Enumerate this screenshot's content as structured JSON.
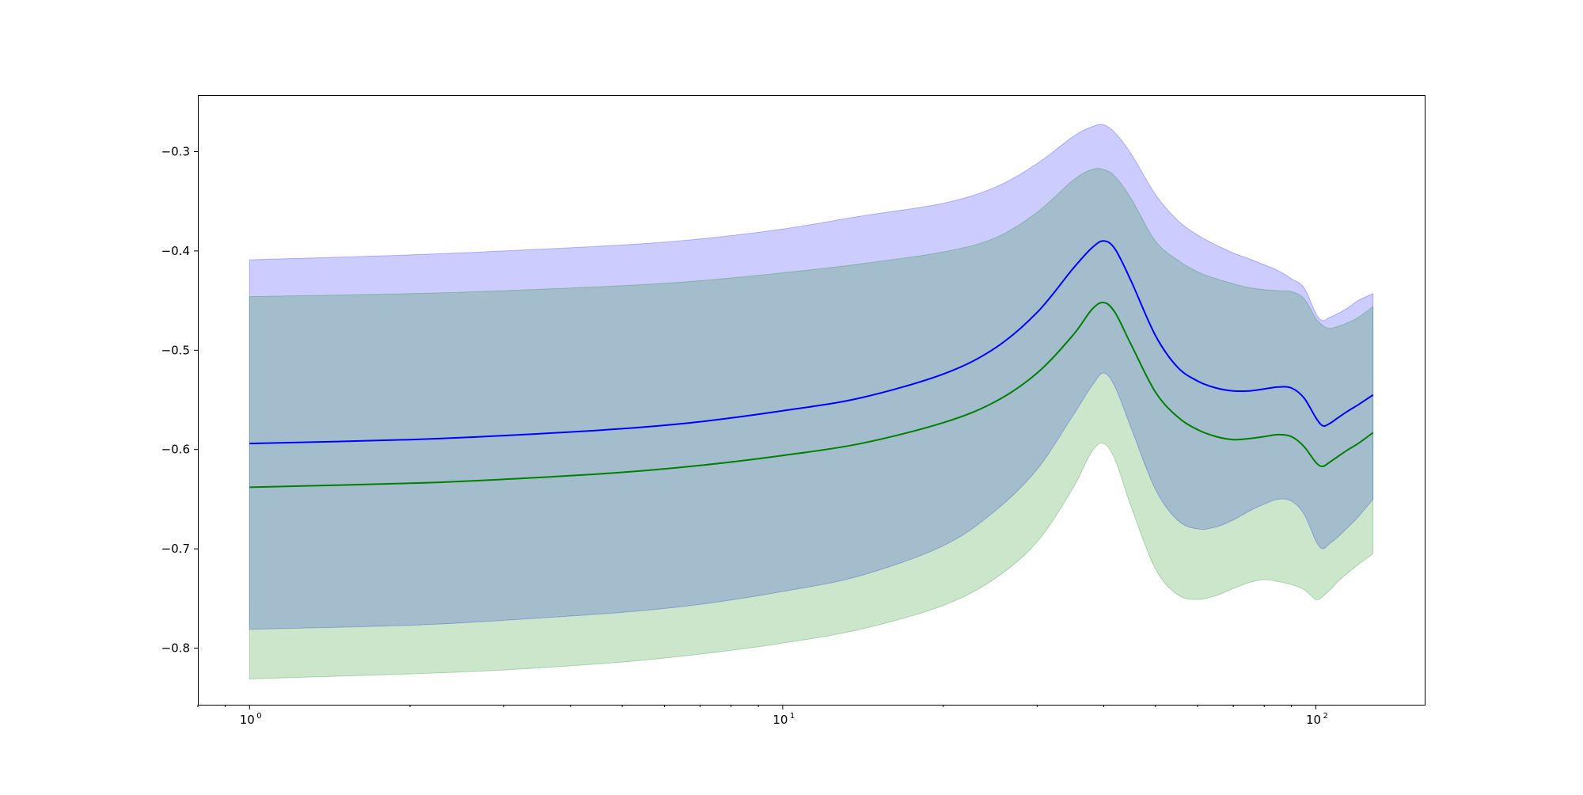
{
  "chart_data": {
    "type": "area",
    "title": "",
    "xlabel": "",
    "ylabel": "",
    "xscale": "log",
    "xlim": [
      0.8,
      160
    ],
    "ylim": [
      -0.857,
      -0.243
    ],
    "grid": false,
    "x": [
      1,
      2,
      3,
      5,
      7,
      10,
      14,
      20,
      25,
      30,
      35,
      38,
      40,
      42,
      45,
      50,
      55,
      60,
      65,
      70,
      75,
      80,
      85,
      90,
      95,
      100,
      103,
      106,
      110,
      115,
      120,
      128
    ],
    "yticks": [
      {
        "value": -0.3,
        "label": "−0.3"
      },
      {
        "value": -0.4,
        "label": "−0.4"
      },
      {
        "value": -0.5,
        "label": "−0.5"
      },
      {
        "value": -0.6,
        "label": "−0.6"
      },
      {
        "value": -0.7,
        "label": "−0.7"
      },
      {
        "value": -0.8,
        "label": "−0.8"
      }
    ],
    "xticks": [
      {
        "value": 1,
        "base": "10",
        "exp": "0"
      },
      {
        "value": 10,
        "base": "10",
        "exp": "1"
      },
      {
        "value": 100,
        "base": "10",
        "exp": "2"
      }
    ],
    "series": [
      {
        "color": "#0000ff",
        "band_color": "#0000ff",
        "band_opacity": 0.2,
        "values": [
          -0.594,
          -0.59,
          -0.586,
          -0.579,
          -0.572,
          -0.561,
          -0.548,
          -0.524,
          -0.498,
          -0.462,
          -0.418,
          -0.397,
          -0.39,
          -0.398,
          -0.43,
          -0.485,
          -0.517,
          -0.531,
          -0.538,
          -0.541,
          -0.541,
          -0.539,
          -0.537,
          -0.538,
          -0.548,
          -0.568,
          -0.576,
          -0.574,
          -0.568,
          -0.561,
          -0.555,
          -0.545
        ],
        "lower": [
          -0.781,
          -0.777,
          -0.772,
          -0.764,
          -0.756,
          -0.743,
          -0.727,
          -0.697,
          -0.662,
          -0.62,
          -0.566,
          -0.536,
          -0.523,
          -0.537,
          -0.578,
          -0.64,
          -0.671,
          -0.68,
          -0.678,
          -0.671,
          -0.662,
          -0.655,
          -0.65,
          -0.652,
          -0.665,
          -0.692,
          -0.7,
          -0.695,
          -0.688,
          -0.678,
          -0.668,
          -0.65
        ],
        "upper": [
          -0.409,
          -0.404,
          -0.4,
          -0.394,
          -0.388,
          -0.378,
          -0.365,
          -0.352,
          -0.336,
          -0.312,
          -0.285,
          -0.275,
          -0.273,
          -0.281,
          -0.302,
          -0.343,
          -0.369,
          -0.384,
          -0.394,
          -0.402,
          -0.408,
          -0.414,
          -0.42,
          -0.428,
          -0.437,
          -0.463,
          -0.47,
          -0.467,
          -0.463,
          -0.457,
          -0.45,
          -0.443
        ]
      },
      {
        "color": "#008000",
        "band_color": "#008000",
        "band_opacity": 0.2,
        "values": [
          -0.638,
          -0.634,
          -0.63,
          -0.623,
          -0.616,
          -0.606,
          -0.594,
          -0.573,
          -0.552,
          -0.523,
          -0.485,
          -0.459,
          -0.452,
          -0.462,
          -0.494,
          -0.542,
          -0.567,
          -0.58,
          -0.587,
          -0.59,
          -0.589,
          -0.587,
          -0.585,
          -0.587,
          -0.597,
          -0.613,
          -0.617,
          -0.613,
          -0.607,
          -0.6,
          -0.594,
          -0.583
        ],
        "lower": [
          -0.831,
          -0.826,
          -0.822,
          -0.814,
          -0.806,
          -0.795,
          -0.781,
          -0.757,
          -0.73,
          -0.693,
          -0.639,
          -0.602,
          -0.594,
          -0.61,
          -0.657,
          -0.72,
          -0.746,
          -0.751,
          -0.747,
          -0.74,
          -0.734,
          -0.731,
          -0.733,
          -0.736,
          -0.741,
          -0.751,
          -0.748,
          -0.742,
          -0.733,
          -0.724,
          -0.716,
          -0.705
        ],
        "upper": [
          -0.446,
          -0.443,
          -0.44,
          -0.435,
          -0.43,
          -0.422,
          -0.413,
          -0.401,
          -0.387,
          -0.361,
          -0.329,
          -0.318,
          -0.318,
          -0.325,
          -0.347,
          -0.39,
          -0.409,
          -0.421,
          -0.428,
          -0.433,
          -0.437,
          -0.439,
          -0.44,
          -0.441,
          -0.448,
          -0.468,
          -0.475,
          -0.478,
          -0.476,
          -0.472,
          -0.467,
          -0.456
        ]
      }
    ]
  }
}
